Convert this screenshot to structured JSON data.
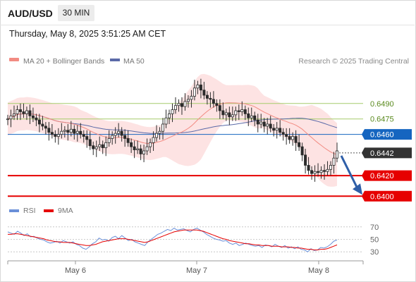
{
  "header": {
    "symbol": "AUD/USD",
    "timeframe": "30 MIN",
    "datetime": "Thursday, May 8, 2025 3:51:25 AM CET"
  },
  "legend": {
    "ma20_label": "MA 20 + Bollinger Bands",
    "ma50_label": "MA 50",
    "credit": "Research © 2025 Trading Central",
    "rsi_label": "RSI",
    "rsi_ma_label": "9MA"
  },
  "colors": {
    "ma20": "#f28b82",
    "band_fill": "#fde3e3",
    "ma50": "#5b6aa8",
    "candle": "#2b2b2b",
    "resistance": "#a5cc6b",
    "pivot": "#1565c0",
    "support": "#e60000",
    "current": "#333333",
    "rsi": "#6a8fd8",
    "rsi_ma": "#e60000",
    "arrow": "#2f5fa8"
  },
  "chart_data": [
    {
      "type": "candlestick",
      "title": "AUD/USD",
      "timeframe": "30 MIN",
      "x_ticks": [
        "May 6",
        "May 7",
        "May 8"
      ],
      "ylim": [
        0.6392,
        0.6522
      ],
      "series": [
        {
          "name": "MA 20 + Bollinger Bands"
        },
        {
          "name": "MA 50"
        }
      ],
      "close_path": [
        0.6475,
        0.6478,
        0.648,
        0.6484,
        0.6482,
        0.648,
        0.6483,
        0.6478,
        0.6476,
        0.6474,
        0.647,
        0.6468,
        0.6466,
        0.6462,
        0.646,
        0.6458,
        0.646,
        0.6463,
        0.6464,
        0.6462,
        0.6465,
        0.6461,
        0.6463,
        0.646,
        0.6458,
        0.6455,
        0.6449,
        0.6446,
        0.6448,
        0.645,
        0.6447,
        0.6452,
        0.6456,
        0.6459,
        0.6461,
        0.6463,
        0.6459,
        0.6456,
        0.6452,
        0.6448,
        0.6445,
        0.6446,
        0.6441,
        0.6444,
        0.6448,
        0.6452,
        0.6457,
        0.6461,
        0.6463,
        0.647,
        0.6476,
        0.648,
        0.6484,
        0.6488,
        0.649,
        0.6487,
        0.6492,
        0.6494,
        0.6497,
        0.6505,
        0.6508,
        0.6503,
        0.6498,
        0.6495,
        0.6494,
        0.649,
        0.6488,
        0.6483,
        0.6479,
        0.6481,
        0.6477,
        0.6479,
        0.6483,
        0.6482,
        0.6484,
        0.648,
        0.6476,
        0.6478,
        0.6474,
        0.647,
        0.6472,
        0.6468,
        0.647,
        0.6466,
        0.6464,
        0.6466,
        0.6462,
        0.646,
        0.6458,
        0.6455,
        0.6458,
        0.6452,
        0.6448,
        0.644,
        0.643,
        0.6425,
        0.6422,
        0.6424,
        0.6423,
        0.6425,
        0.6424,
        0.6426,
        0.643,
        0.6437,
        0.6444
      ],
      "levels": [
        {
          "label": "0.6490",
          "value": 0.649,
          "kind": "resistance"
        },
        {
          "label": "0.6475",
          "value": 0.6475,
          "kind": "resistance"
        },
        {
          "label": "0.6460",
          "value": 0.646,
          "kind": "pivot"
        },
        {
          "label": "0.6442",
          "value": 0.6442,
          "kind": "current"
        },
        {
          "label": "0.6420",
          "value": 0.642,
          "kind": "support"
        },
        {
          "label": "0.6400",
          "value": 0.64,
          "kind": "support"
        }
      ],
      "forecast": {
        "from": 0.6442,
        "to": 0.64,
        "direction": "down"
      }
    },
    {
      "type": "line",
      "title": "RSI",
      "series": [
        {
          "name": "RSI"
        },
        {
          "name": "9MA"
        }
      ],
      "yticks": [
        70,
        50,
        30
      ],
      "ylim": [
        20,
        80
      ],
      "rsi": [
        62,
        60,
        58,
        63,
        60,
        56,
        59,
        54,
        55,
        52,
        50,
        49,
        46,
        44,
        45,
        47,
        44,
        48,
        46,
        44,
        46,
        42,
        40,
        36,
        34,
        38,
        43,
        46,
        52,
        49,
        50,
        47,
        53,
        55,
        51,
        56,
        52,
        48,
        50,
        46,
        44,
        42,
        40,
        46,
        50,
        54,
        58,
        60,
        63,
        66,
        64,
        68,
        65,
        66,
        67,
        64,
        62,
        66,
        68,
        65,
        62,
        58,
        55,
        52,
        50,
        49,
        47,
        48,
        44,
        42,
        44,
        40,
        42,
        44,
        42,
        40,
        39,
        40,
        37,
        41,
        40,
        38,
        42,
        39,
        37,
        40,
        36,
        38,
        35,
        38,
        34,
        33,
        30,
        35,
        32,
        33,
        37,
        36,
        38,
        42,
        47,
        49
      ],
      "rsi_ma": [
        58,
        58,
        59,
        59,
        58,
        57,
        56,
        55,
        54,
        53,
        52,
        51,
        49,
        48,
        47,
        46,
        46,
        45,
        45,
        45,
        44,
        43,
        42,
        41,
        40,
        40,
        41,
        42,
        44,
        46,
        47,
        48,
        49,
        50,
        51,
        51,
        51,
        50,
        49,
        48,
        47,
        46,
        45,
        46,
        48,
        50,
        52,
        54,
        56,
        58,
        60,
        62,
        63,
        64,
        65,
        65,
        65,
        65,
        65,
        64,
        63,
        61,
        59,
        57,
        55,
        53,
        51,
        50,
        48,
        47,
        46,
        45,
        44,
        43,
        43,
        42,
        41,
        41,
        40,
        40,
        40,
        39,
        39,
        39,
        38,
        38,
        38,
        37,
        37,
        36,
        36,
        35,
        34,
        34,
        33,
        33,
        34,
        34,
        35,
        37,
        39,
        41
      ]
    }
  ]
}
